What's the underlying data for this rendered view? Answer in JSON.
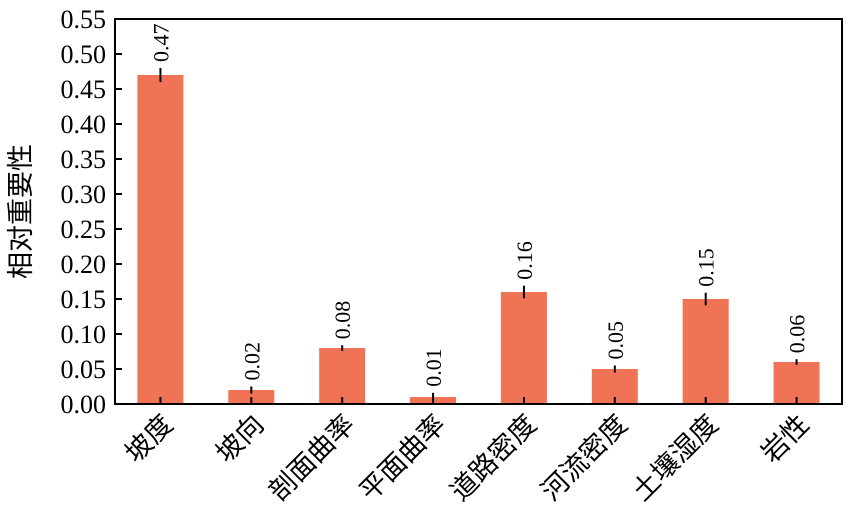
{
  "chart_data": {
    "type": "bar",
    "title": "",
    "xlabel": "",
    "ylabel": "相对重要性",
    "ylim": [
      0,
      0.55
    ],
    "yticks": [
      "0.00",
      "0.05",
      "0.10",
      "0.15",
      "0.20",
      "0.25",
      "0.30",
      "0.35",
      "0.40",
      "0.45",
      "0.50",
      "0.55"
    ],
    "categories": [
      "坡度",
      "坡向",
      "剖面曲率",
      "平面曲率",
      "道路密度",
      "河流密度",
      "土壤湿度",
      "岩性"
    ],
    "values": [
      0.47,
      0.02,
      0.08,
      0.01,
      0.16,
      0.05,
      0.15,
      0.06
    ],
    "value_labels": [
      "0.47",
      "0.02",
      "0.08",
      "0.01",
      "0.16",
      "0.05",
      "0.15",
      "0.06"
    ],
    "error": [
      0.01,
      0.005,
      0.004,
      0.006,
      0.009,
      0.005,
      0.009,
      0.004
    ],
    "bar_color": "#F07355",
    "grid": false,
    "legend": "none"
  }
}
